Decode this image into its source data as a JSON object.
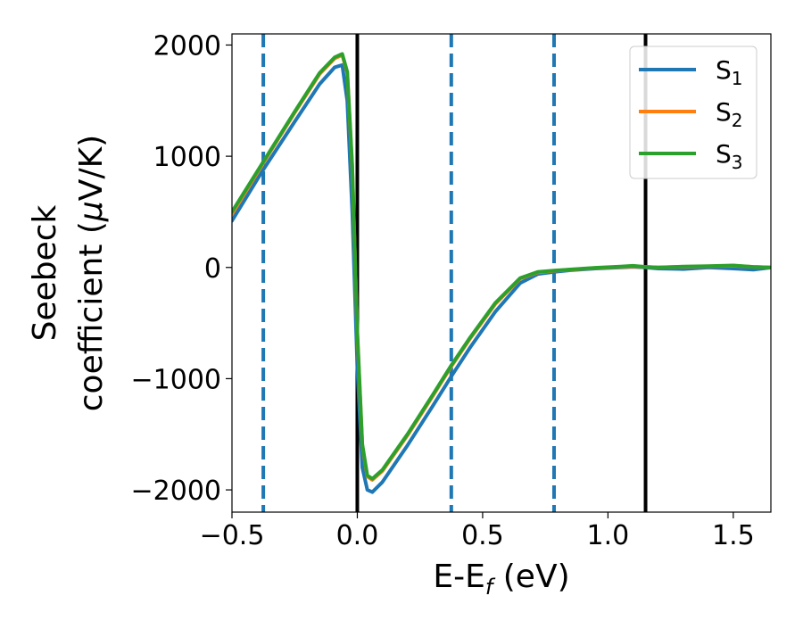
{
  "chart_data": {
    "type": "line",
    "title": "",
    "xlabel": "E-E",
    "xlabel_sub": "f",
    "xlabel_unit": " (eV)",
    "ylabel_line1": "Seebeck",
    "ylabel_line2_prefix": "coefficient  (",
    "ylabel_mu": "μ",
    "ylabel_line2_suffix": "V/K)",
    "xlim": [
      -0.5,
      1.65
    ],
    "ylim": [
      -2200,
      2100
    ],
    "xticks": [
      -0.5,
      0.0,
      0.5,
      1.0,
      1.5
    ],
    "xtick_labels": [
      "−0.5",
      "0.0",
      "0.5",
      "1.0",
      "1.5"
    ],
    "yticks": [
      2000,
      1000,
      0,
      -1000,
      -2000
    ],
    "ytick_labels": [
      "2000",
      "1000",
      "0",
      "−1000",
      "−2000"
    ],
    "grid": false,
    "legend_position": "top-right",
    "vlines_solid": [
      0.0,
      1.15
    ],
    "vlines_dashed": [
      -0.375,
      0.375,
      0.785
    ],
    "vline_solid_color": "#000000",
    "vline_dashed_color": "#1f77b4",
    "series": [
      {
        "name": "S",
        "sub": "1",
        "color": "#1f77b4",
        "x": [
          -0.5,
          -0.375,
          -0.25,
          -0.15,
          -0.09,
          -0.06,
          -0.04,
          -0.02,
          0.0,
          0.02,
          0.04,
          0.06,
          0.1,
          0.2,
          0.3,
          0.375,
          0.45,
          0.55,
          0.65,
          0.72,
          0.785,
          0.85,
          0.95,
          1.05,
          1.1,
          1.15,
          1.2,
          1.3,
          1.4,
          1.5,
          1.58,
          1.65
        ],
        "y": [
          420,
          880,
          1310,
          1650,
          1800,
          1820,
          1500,
          500,
          -900,
          -1800,
          -2000,
          -2020,
          -1930,
          -1600,
          -1250,
          -980,
          -720,
          -400,
          -140,
          -60,
          -40,
          -25,
          -10,
          0,
          5,
          0,
          -10,
          -15,
          0,
          -10,
          -20,
          0
        ]
      },
      {
        "name": "S",
        "sub": "2",
        "color": "#ff7f0e",
        "x": [
          -0.5,
          -0.375,
          -0.25,
          -0.15,
          -0.09,
          -0.06,
          -0.04,
          -0.02,
          0.0,
          0.02,
          0.04,
          0.06,
          0.1,
          0.2,
          0.3,
          0.375,
          0.45,
          0.55,
          0.65,
          0.72,
          0.785,
          0.85,
          0.95,
          1.05,
          1.1,
          1.15,
          1.2,
          1.3,
          1.4,
          1.5,
          1.58,
          1.65
        ],
        "y": [
          480,
          940,
          1390,
          1740,
          1880,
          1910,
          1750,
          900,
          -600,
          -1600,
          -1880,
          -1910,
          -1830,
          -1510,
          -1160,
          -890,
          -640,
          -330,
          -100,
          -45,
          -30,
          -20,
          -5,
          5,
          10,
          5,
          0,
          5,
          10,
          15,
          5,
          0
        ]
      },
      {
        "name": "S",
        "sub": "3",
        "color": "#2ca02c",
        "x": [
          -0.5,
          -0.375,
          -0.25,
          -0.15,
          -0.09,
          -0.06,
          -0.04,
          -0.02,
          0.0,
          0.02,
          0.04,
          0.06,
          0.1,
          0.2,
          0.3,
          0.375,
          0.45,
          0.55,
          0.65,
          0.72,
          0.785,
          0.85,
          0.95,
          1.05,
          1.1,
          1.15,
          1.2,
          1.3,
          1.4,
          1.5,
          1.58,
          1.65
        ],
        "y": [
          500,
          950,
          1400,
          1750,
          1890,
          1920,
          1760,
          920,
          -580,
          -1590,
          -1870,
          -1900,
          -1820,
          -1500,
          -1150,
          -880,
          -630,
          -320,
          -95,
          -40,
          -28,
          -18,
          -3,
          8,
          15,
          5,
          0,
          8,
          12,
          18,
          5,
          0
        ]
      }
    ]
  }
}
